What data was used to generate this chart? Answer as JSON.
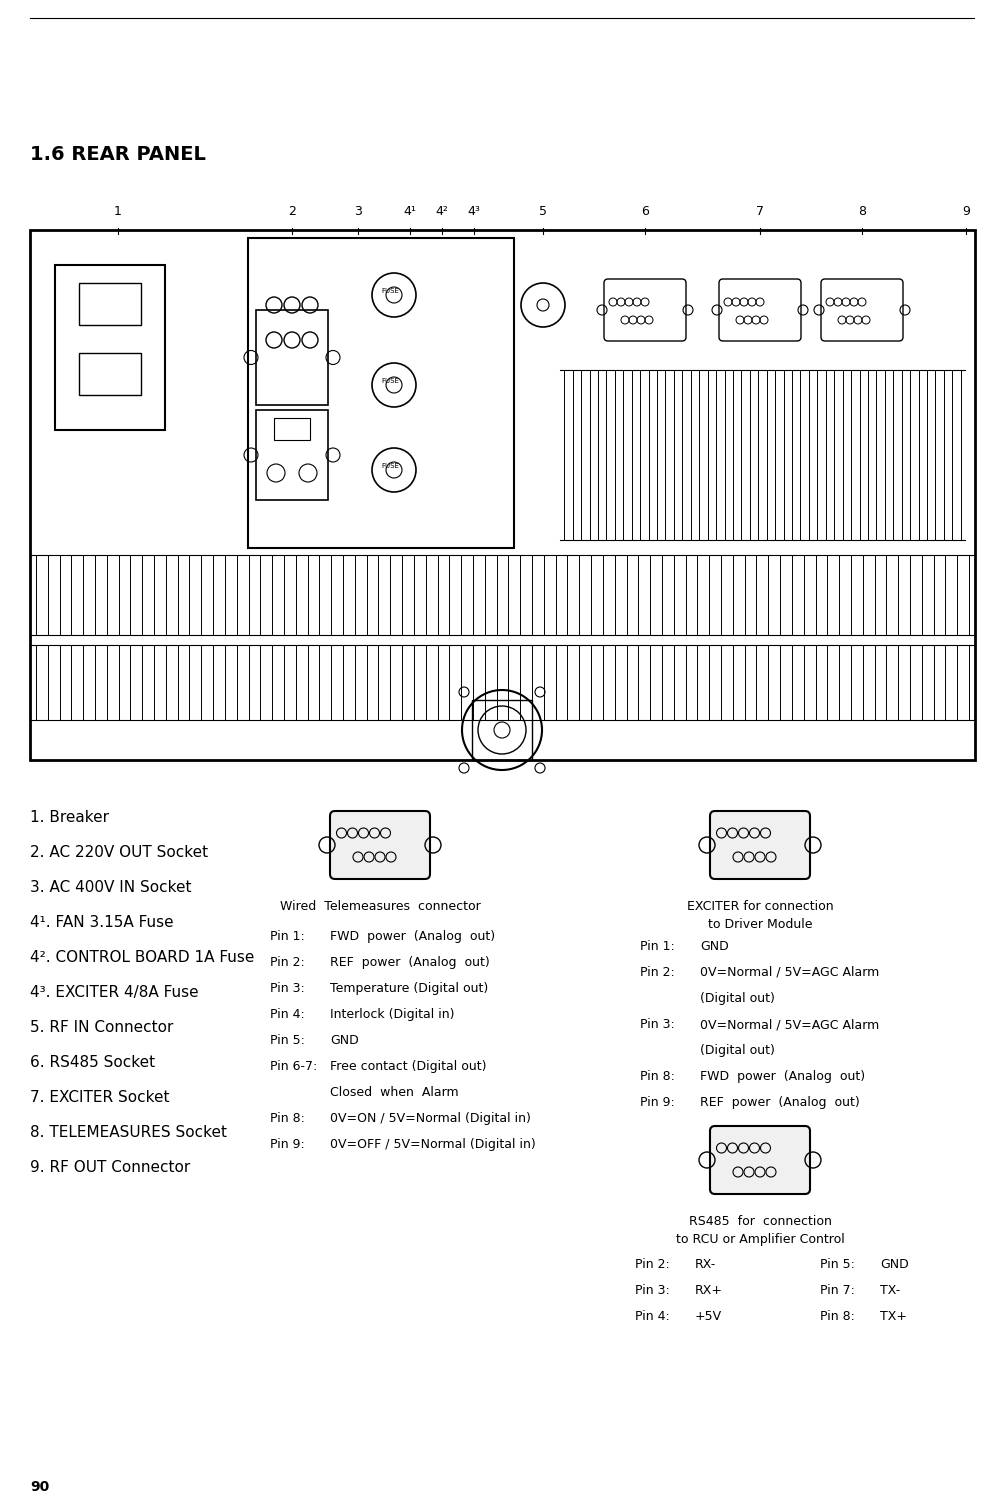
{
  "title": "1.6 REAR PANEL",
  "page_number": "90",
  "bg_color": "#ffffff",
  "section_labels": [
    "1",
    "2",
    "3",
    "4¹",
    "4²",
    "4³",
    "5",
    "6",
    "7",
    "8",
    "9"
  ],
  "legend_items": [
    "1. Breaker",
    "2. AC 220V OUT Socket",
    "3. AC 400V IN Socket",
    "4¹. FAN 3.15A Fuse",
    "4². CONTROL BOARD 1A Fuse",
    "4³. EXCITER 4/8A Fuse",
    "5. RF IN Connector",
    "6. RS485 Socket",
    "7. EXCITER Socket",
    "8. TELEMEASURES Socket",
    "9. RF OUT Connector"
  ],
  "tele_pins": [
    [
      "Pin 1:",
      "FWD  power  (Analog  out)"
    ],
    [
      "Pin 2:",
      "REF  power  (Analog  out)"
    ],
    [
      "Pin 3:",
      "Temperature (Digital out)"
    ],
    [
      "Pin 4:",
      "Interlock (Digital in)"
    ],
    [
      "Pin 5:",
      "GND"
    ],
    [
      "Pin 6-7:",
      "Free contact (Digital out)"
    ],
    [
      "",
      "Closed  when  Alarm"
    ],
    [
      "Pin 8:",
      "0V=ON / 5V=Normal (Digital in)"
    ],
    [
      "Pin 9:",
      "0V=OFF / 5V=Normal (Digital in)"
    ]
  ],
  "exciter_pins": [
    [
      "Pin 1:",
      "GND"
    ],
    [
      "Pin 2:",
      "0V=Normal / 5V=AGC Alarm"
    ],
    [
      "",
      "(Digital out)"
    ],
    [
      "Pin 3:",
      "0V=Normal / 5V=AGC Alarm"
    ],
    [
      "",
      "(Digital out)"
    ],
    [
      "Pin 8:",
      "FWD  power  (Analog  out)"
    ],
    [
      "Pin 9:",
      "REF  power  (Analog  out)"
    ]
  ],
  "rs485_pins_left": [
    [
      "Pin 2:",
      "RX-"
    ],
    [
      "Pin 3:",
      "RX+"
    ],
    [
      "Pin 4:",
      "+5V"
    ]
  ],
  "rs485_pins_right": [
    [
      "Pin 5:",
      "GND"
    ],
    [
      "Pin 7:",
      "TX-"
    ],
    [
      "Pin 8:",
      "TX+"
    ]
  ]
}
